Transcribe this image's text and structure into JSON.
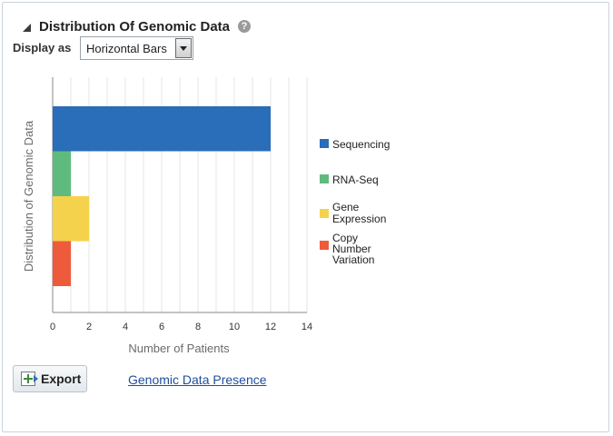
{
  "panel": {
    "title": "Distribution Of Genomic Data",
    "help_icon": "question-mark-icon",
    "display_as_label": "Display as",
    "display_select": {
      "value": "Horizontal Bars"
    }
  },
  "chart_data": {
    "type": "bar",
    "orientation": "horizontal",
    "categories": [
      "Sequencing",
      "RNA-Seq",
      "Gene Expression",
      "Copy Number Variation"
    ],
    "values": [
      12,
      1,
      2,
      1
    ],
    "colors": [
      "#2a6db8",
      "#5fbb7d",
      "#f5d24b",
      "#ed5b3c"
    ],
    "legend": [
      "Sequencing",
      "RNA-Seq",
      "Gene Expression",
      "Copy Number Variation"
    ],
    "legend_lines": [
      [
        "Sequencing"
      ],
      [
        "RNA-Seq"
      ],
      [
        "Gene",
        "Expression"
      ],
      [
        "Copy",
        "Number",
        "Variation"
      ]
    ],
    "legend_position": "right",
    "xlabel": "Number of Patients",
    "ylabel": "Distribution of Genomic Data",
    "xlim": [
      0,
      14
    ],
    "xticks": [
      0,
      2,
      4,
      6,
      8,
      10,
      12,
      14
    ],
    "grid": true
  },
  "actions": {
    "export_label": "Export",
    "export_icon": "export-icon",
    "link_label": "Genomic Data Presence"
  }
}
